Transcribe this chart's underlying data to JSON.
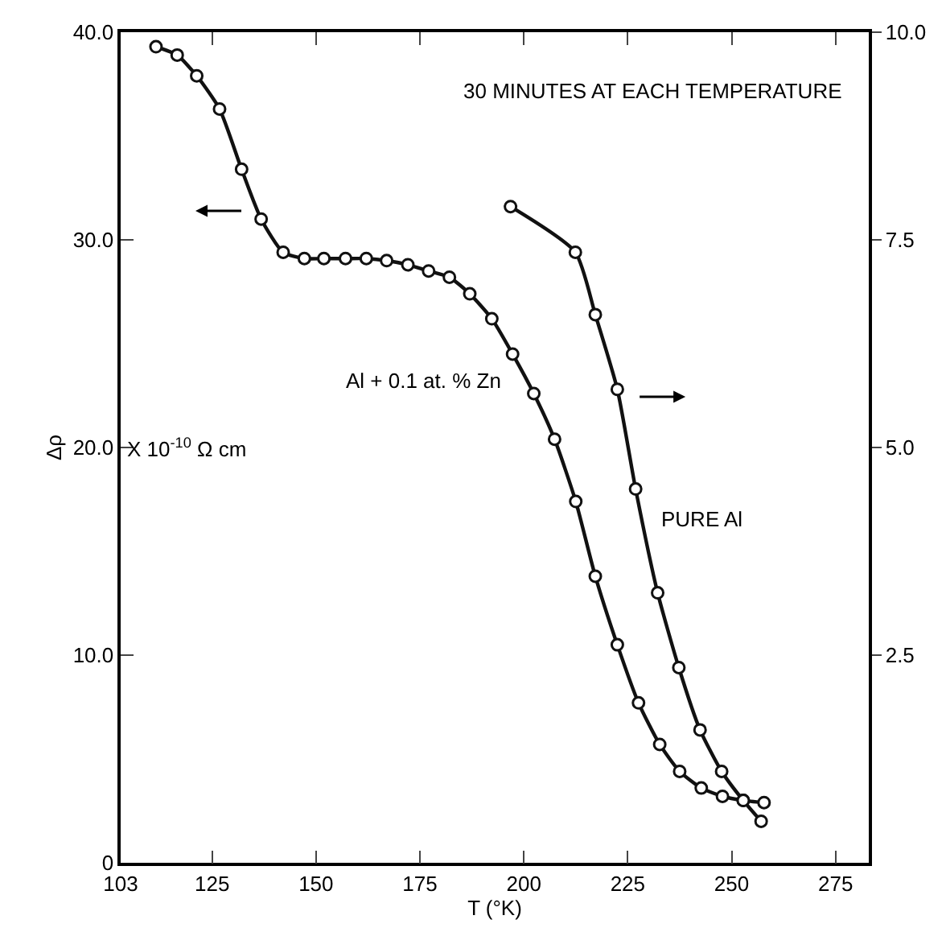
{
  "chart_data": {
    "type": "line",
    "xlabel": "T (°K)",
    "ylabel": "Δρ",
    "xlim": [
      103,
      283
    ],
    "xticks": [
      103,
      125,
      150,
      175,
      200,
      225,
      250,
      275
    ],
    "ylim": [
      0,
      40
    ],
    "yticks": [
      {
        "value": 0,
        "label": "0"
      },
      {
        "value": 10,
        "label": "10.0"
      },
      {
        "value": 20,
        "label": "20.0"
      },
      {
        "value": 30,
        "label": "30.0"
      },
      {
        "value": 40,
        "label": "40.0"
      }
    ],
    "y2lim": [
      0,
      10
    ],
    "y2ticks": [
      {
        "value": 2.5,
        "label": "2.5"
      },
      {
        "value": 5,
        "label": "5.0"
      },
      {
        "value": 7.5,
        "label": "7.5"
      },
      {
        "value": 10,
        "label": "10.0"
      }
    ],
    "marker": "circle",
    "line_style": "solid",
    "series": [
      {
        "color": "#111111",
        "x": [
          111.5,
          116.6,
          121.3,
          126.8,
          132.1,
          136.8,
          142.1,
          147.2,
          151.9,
          157.1,
          162.1,
          167.0,
          172.1,
          177.1,
          182.1,
          187.0,
          192.3,
          197.3,
          202.4,
          207.4,
          212.5,
          217.2,
          222.5,
          227.6,
          232.7,
          237.5,
          242.7,
          247.8,
          252.8,
          257.8
        ],
        "values": [
          39.3,
          38.9,
          37.9,
          36.3,
          33.4,
          31.0,
          29.4,
          29.1,
          29.1,
          29.1,
          29.1,
          29.0,
          28.8,
          28.5,
          28.2,
          27.4,
          26.2,
          24.5,
          22.6,
          20.4,
          17.4,
          13.8,
          10.5,
          7.7,
          5.7,
          4.4,
          3.6,
          3.2,
          3.0,
          2.9
        ]
      },
      {
        "color": "#111111",
        "axis": "y2",
        "x": [
          196.8,
          212.4,
          217.2,
          222.5,
          226.9,
          232.2,
          237.3,
          242.4,
          247.6,
          252.8,
          257.1
        ],
        "values": [
          7.9,
          7.35,
          6.6,
          5.7,
          4.5,
          3.25,
          2.35,
          1.6,
          1.1,
          0.75,
          0.5
        ]
      }
    ],
    "annotations": [
      "30 MINUTES AT EACH TEMPERATURE",
      "X 10$^{-10}$ Ω cm",
      "Al + 0.1 at. % Zn",
      "PURE Al"
    ]
  }
}
